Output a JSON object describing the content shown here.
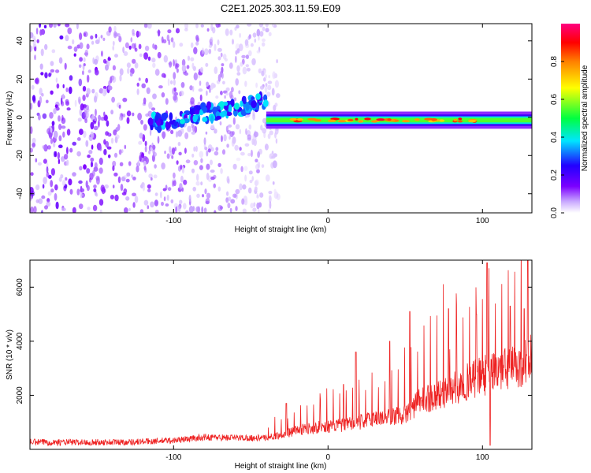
{
  "title": "C2E1.2025.303.11.59.E09",
  "chart_data": [
    {
      "type": "heatmap",
      "title": "C2E1.2025.303.11.59.E09",
      "xlabel": "Height of straight line (km)",
      "ylabel": "Frequency (Hz)",
      "xlim": [
        -193,
        132
      ],
      "ylim": [
        -50,
        49
      ],
      "xticks": [
        -100,
        0,
        100
      ],
      "yticks": [
        -40,
        -20,
        0,
        20,
        40
      ],
      "colorbar": {
        "label": "Normalized spectral amplitude",
        "range": [
          0.0,
          1.0
        ],
        "ticks": [
          0.0,
          0.2,
          0.4,
          0.6,
          0.8
        ],
        "colors": [
          "#ffffff",
          "#c9a8ff",
          "#7b00ff",
          "#2200ff",
          "#00e5ff",
          "#00ff40",
          "#ffff00",
          "#ff8000",
          "#ff0000",
          "#ff0080"
        ]
      },
      "features": {
        "noise_region_x_range": [
          -193,
          -40
        ],
        "rising_track": {
          "x": [
            -115,
            -40
          ],
          "freq": [
            -3,
            8
          ]
        },
        "steady_line_freq_hz": -1.5,
        "steady_line_x_range": [
          -40,
          132
        ],
        "strongest_amplitude_x_range": [
          -25,
          100
        ]
      }
    },
    {
      "type": "line",
      "xlabel": "Height of straight line (km)",
      "ylabel": "SNR (10 * v/v)",
      "xlim": [
        -193,
        132
      ],
      "ylim": [
        0,
        7000
      ],
      "xticks": [
        -100,
        0,
        100
      ],
      "yticks": [
        2000,
        4000,
        6000
      ],
      "series": [
        {
          "name": "SNR",
          "color": "#ee2222",
          "x": [
            -193,
            -160,
            -130,
            -100,
            -80,
            -60,
            -40,
            -30,
            -20,
            -10,
            0,
            10,
            20,
            30,
            40,
            50,
            60,
            70,
            80,
            90,
            100,
            110,
            120,
            132
          ],
          "values": [
            270,
            260,
            270,
            330,
            450,
            430,
            420,
            550,
            700,
            800,
            850,
            900,
            1000,
            1150,
            1200,
            1300,
            1800,
            2000,
            2200,
            2500,
            2700,
            2900,
            3000,
            3400
          ],
          "spikes": [
            {
              "x": -27,
              "value": 1700
            },
            {
              "x": 10,
              "value": 2400
            },
            {
              "x": 18,
              "value": 3600
            },
            {
              "x": 40,
              "value": 4000
            },
            {
              "x": 53,
              "value": 5100
            },
            {
              "x": 78,
              "value": 5200
            },
            {
              "x": 96,
              "value": 5000
            },
            {
              "x": 103,
              "value": 6900
            },
            {
              "x": 118,
              "value": 5300
            },
            {
              "x": 127,
              "value": 5200
            }
          ],
          "dip": {
            "x": 105,
            "value": 150
          }
        }
      ]
    }
  ]
}
